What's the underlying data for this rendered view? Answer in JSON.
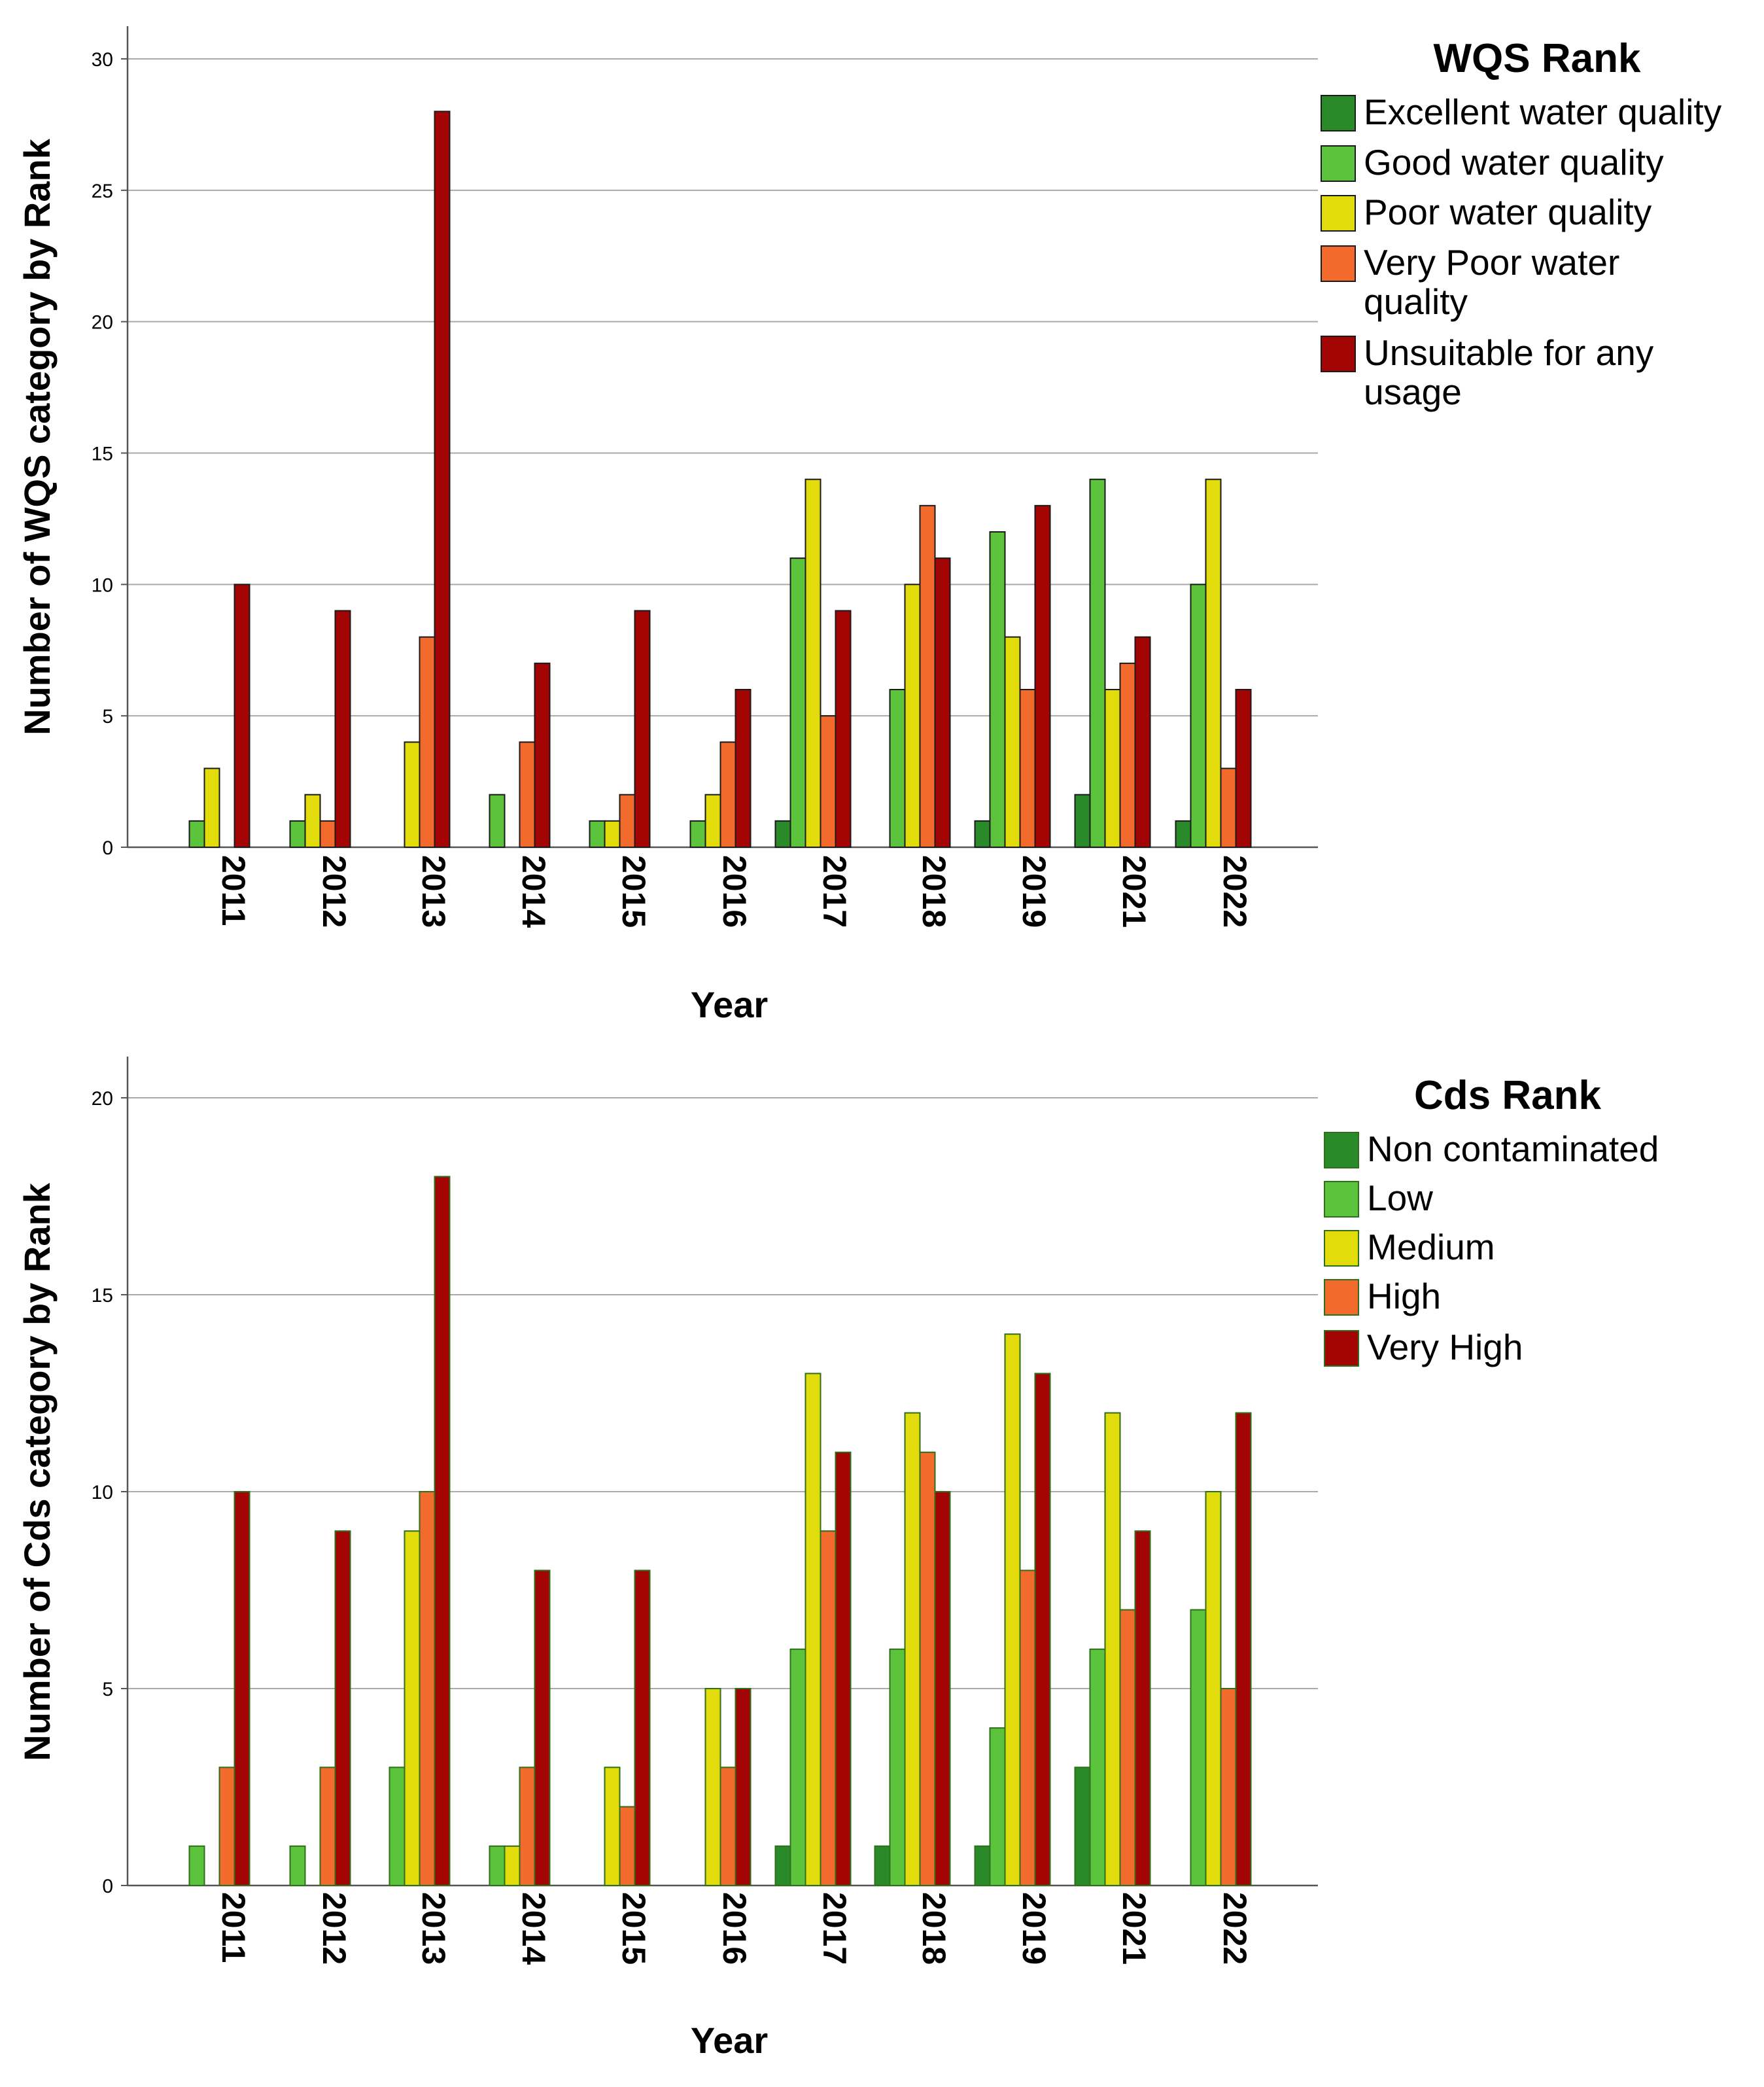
{
  "colors": {
    "dark_green": "#2a8a2a",
    "light_green": "#5cc43c",
    "yellow": "#e3dc0c",
    "orange": "#f26a2c",
    "dark_red": "#a30404",
    "grid": "#aaaaaa",
    "axis": "#555555"
  },
  "chart_data": [
    {
      "type": "bar",
      "title": "",
      "xlabel": "Year",
      "ylabel": "Number of WQS category by Rank",
      "ylim": [
        0,
        30
      ],
      "yticks": [
        "0",
        "5",
        "10",
        "15",
        "20",
        "25",
        "30"
      ],
      "categories": [
        "2011",
        "2012",
        "2013",
        "2014",
        "2015",
        "2016",
        "2017",
        "2018",
        "2019",
        "2021",
        "2022"
      ],
      "legend_title": "WQS Rank",
      "legend_position": "right",
      "series": [
        {
          "name": "Excellent water quality",
          "color_key": "dark_green",
          "values": [
            0,
            0,
            0,
            0,
            0,
            0,
            1,
            0,
            1,
            2,
            1
          ]
        },
        {
          "name": "Good water quality",
          "color_key": "light_green",
          "values": [
            1,
            1,
            0,
            2,
            1,
            1,
            11,
            6,
            12,
            14,
            10
          ]
        },
        {
          "name": "Poor water quality",
          "color_key": "yellow",
          "values": [
            3,
            2,
            4,
            0,
            1,
            2,
            14,
            10,
            8,
            6,
            14
          ]
        },
        {
          "name": "Very Poor water quality",
          "color_key": "orange",
          "values": [
            0,
            1,
            8,
            4,
            2,
            4,
            5,
            13,
            6,
            7,
            3
          ]
        },
        {
          "name": "Unsuitable for any usage",
          "color_key": "dark_red",
          "values": [
            10,
            9,
            28,
            7,
            9,
            6,
            9,
            11,
            13,
            8,
            6
          ]
        }
      ]
    },
    {
      "type": "bar",
      "title": "",
      "xlabel": "Year",
      "ylabel": "Number of Cds category by Rank",
      "ylim": [
        0,
        20
      ],
      "yticks": [
        "0",
        "5",
        "10",
        "15",
        "20"
      ],
      "categories": [
        "2011",
        "2012",
        "2013",
        "2014",
        "2015",
        "2016",
        "2017",
        "2018",
        "2019",
        "2021",
        "2022"
      ],
      "legend_title": "Cds Rank",
      "legend_position": "right",
      "series": [
        {
          "name": "Non contaminated",
          "color_key": "dark_green",
          "values": [
            0,
            0,
            0,
            0,
            0,
            0,
            1,
            1,
            1,
            3,
            0
          ]
        },
        {
          "name": "Low",
          "color_key": "light_green",
          "values": [
            1,
            1,
            3,
            1,
            0,
            0,
            6,
            6,
            4,
            6,
            7
          ]
        },
        {
          "name": "Medium",
          "color_key": "yellow",
          "values": [
            0,
            0,
            9,
            1,
            3,
            5,
            13,
            12,
            14,
            12,
            10
          ]
        },
        {
          "name": "High",
          "color_key": "orange",
          "values": [
            3,
            3,
            10,
            3,
            2,
            3,
            9,
            11,
            8,
            7,
            5
          ]
        },
        {
          "name": "Very High",
          "color_key": "dark_red",
          "values": [
            10,
            9,
            18,
            8,
            8,
            5,
            11,
            10,
            13,
            9,
            12
          ]
        }
      ]
    }
  ]
}
